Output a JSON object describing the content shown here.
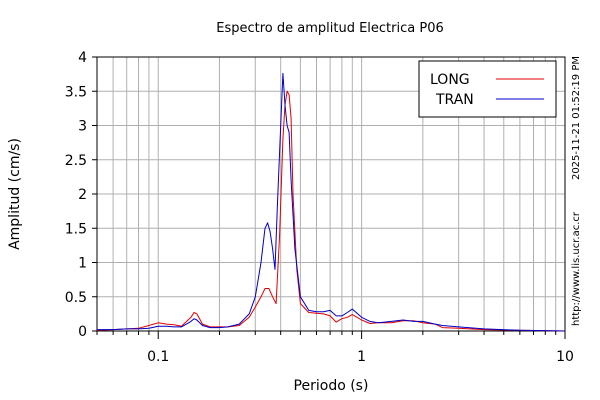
{
  "chart_data": {
    "type": "line",
    "title": "Espectro de amplitud Electrica P06",
    "xlabel": "Periodo (s)",
    "ylabel": "Amplitud (cm/s)",
    "x_scale": "log",
    "xlim": [
      0.05,
      10
    ],
    "ylim": [
      0,
      4
    ],
    "x_ticks": [
      0.1,
      1,
      10
    ],
    "x_tick_labels": [
      "0.1",
      "1",
      "10"
    ],
    "y_ticks": [
      0,
      0.5,
      1,
      1.5,
      2,
      2.5,
      3,
      3.5,
      4
    ],
    "y_tick_labels": [
      "0",
      "0.5",
      "1",
      "1.5",
      "2",
      "2.5",
      "3",
      "3.5",
      "4"
    ],
    "grid": true,
    "legend_position": "top-right",
    "series": [
      {
        "name": "LONG",
        "color": "#e00000",
        "points": [
          [
            0.05,
            0.01
          ],
          [
            0.06,
            0.02
          ],
          [
            0.07,
            0.03
          ],
          [
            0.08,
            0.04
          ],
          [
            0.09,
            0.08
          ],
          [
            0.1,
            0.12
          ],
          [
            0.11,
            0.1
          ],
          [
            0.12,
            0.09
          ],
          [
            0.13,
            0.07
          ],
          [
            0.145,
            0.2
          ],
          [
            0.15,
            0.27
          ],
          [
            0.155,
            0.25
          ],
          [
            0.165,
            0.1
          ],
          [
            0.18,
            0.06
          ],
          [
            0.2,
            0.06
          ],
          [
            0.22,
            0.06
          ],
          [
            0.25,
            0.08
          ],
          [
            0.28,
            0.2
          ],
          [
            0.3,
            0.35
          ],
          [
            0.32,
            0.5
          ],
          [
            0.335,
            0.62
          ],
          [
            0.35,
            0.62
          ],
          [
            0.365,
            0.5
          ],
          [
            0.38,
            0.4
          ],
          [
            0.395,
            1.4
          ],
          [
            0.41,
            2.8
          ],
          [
            0.42,
            3.3
          ],
          [
            0.43,
            3.5
          ],
          [
            0.44,
            3.45
          ],
          [
            0.45,
            3.1
          ],
          [
            0.46,
            2.0
          ],
          [
            0.48,
            0.9
          ],
          [
            0.5,
            0.4
          ],
          [
            0.55,
            0.27
          ],
          [
            0.6,
            0.26
          ],
          [
            0.65,
            0.25
          ],
          [
            0.7,
            0.22
          ],
          [
            0.75,
            0.13
          ],
          [
            0.8,
            0.18
          ],
          [
            0.85,
            0.2
          ],
          [
            0.9,
            0.24
          ],
          [
            0.95,
            0.2
          ],
          [
            1.0,
            0.16
          ],
          [
            1.1,
            0.11
          ],
          [
            1.2,
            0.12
          ],
          [
            1.4,
            0.12
          ],
          [
            1.6,
            0.15
          ],
          [
            1.8,
            0.15
          ],
          [
            2.0,
            0.12
          ],
          [
            2.3,
            0.1
          ],
          [
            2.5,
            0.05
          ],
          [
            3.0,
            0.04
          ],
          [
            4.0,
            0.02
          ],
          [
            6.0,
            0.01
          ],
          [
            10.0,
            0.0
          ]
        ]
      },
      {
        "name": "TRAN",
        "color": "#0000c8",
        "points": [
          [
            0.05,
            0.02
          ],
          [
            0.06,
            0.02
          ],
          [
            0.07,
            0.03
          ],
          [
            0.08,
            0.03
          ],
          [
            0.09,
            0.04
          ],
          [
            0.1,
            0.07
          ],
          [
            0.11,
            0.07
          ],
          [
            0.12,
            0.06
          ],
          [
            0.13,
            0.06
          ],
          [
            0.145,
            0.14
          ],
          [
            0.15,
            0.18
          ],
          [
            0.155,
            0.16
          ],
          [
            0.165,
            0.08
          ],
          [
            0.18,
            0.05
          ],
          [
            0.2,
            0.05
          ],
          [
            0.22,
            0.06
          ],
          [
            0.25,
            0.1
          ],
          [
            0.28,
            0.25
          ],
          [
            0.3,
            0.5
          ],
          [
            0.32,
            1.0
          ],
          [
            0.335,
            1.5
          ],
          [
            0.345,
            1.58
          ],
          [
            0.355,
            1.45
          ],
          [
            0.365,
            1.2
          ],
          [
            0.375,
            0.9
          ],
          [
            0.385,
            1.8
          ],
          [
            0.4,
            3.0
          ],
          [
            0.41,
            3.76
          ],
          [
            0.42,
            3.3
          ],
          [
            0.43,
            3.0
          ],
          [
            0.44,
            2.9
          ],
          [
            0.45,
            2.2
          ],
          [
            0.47,
            1.2
          ],
          [
            0.5,
            0.5
          ],
          [
            0.55,
            0.3
          ],
          [
            0.6,
            0.28
          ],
          [
            0.65,
            0.28
          ],
          [
            0.7,
            0.3
          ],
          [
            0.75,
            0.22
          ],
          [
            0.8,
            0.22
          ],
          [
            0.85,
            0.27
          ],
          [
            0.9,
            0.32
          ],
          [
            0.95,
            0.26
          ],
          [
            1.0,
            0.2
          ],
          [
            1.1,
            0.14
          ],
          [
            1.2,
            0.12
          ],
          [
            1.4,
            0.14
          ],
          [
            1.6,
            0.16
          ],
          [
            1.8,
            0.14
          ],
          [
            2.0,
            0.14
          ],
          [
            2.3,
            0.1
          ],
          [
            2.5,
            0.08
          ],
          [
            3.0,
            0.06
          ],
          [
            4.0,
            0.03
          ],
          [
            6.0,
            0.01
          ],
          [
            10.0,
            0.0
          ]
        ]
      }
    ]
  },
  "side_text": {
    "timestamp": "2025-11-21 01:52:19 PM",
    "url": "http://www.lis.ucr.ac.cr"
  }
}
